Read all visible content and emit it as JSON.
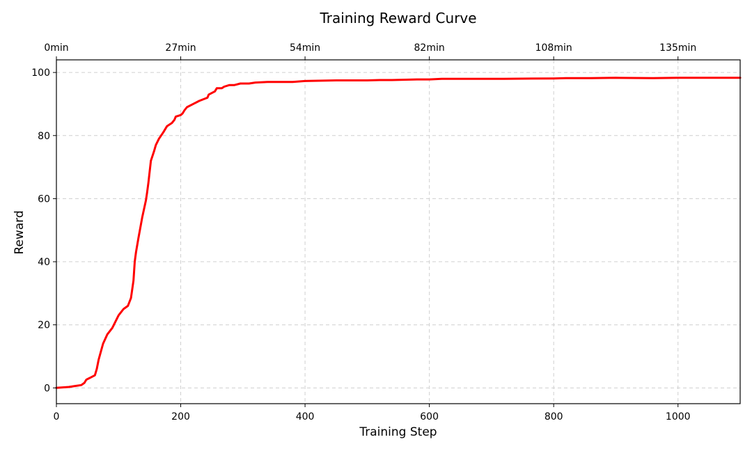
{
  "chart_data": {
    "type": "line",
    "title": "Training Reward Curve",
    "xlabel": "Training Step",
    "ylabel": "Reward",
    "xlim": [
      0,
      1100
    ],
    "ylim": [
      -5,
      104
    ],
    "xticks": [
      0,
      200,
      400,
      600,
      800,
      1000
    ],
    "yticks": [
      0,
      20,
      40,
      60,
      80,
      100
    ],
    "top_axis_ticks": [
      {
        "step": 0,
        "label": "0min"
      },
      {
        "step": 200,
        "label": "27min"
      },
      {
        "step": 400,
        "label": "54min"
      },
      {
        "step": 600,
        "label": "82min"
      },
      {
        "step": 800,
        "label": "108min"
      },
      {
        "step": 1000,
        "label": "135min"
      }
    ],
    "grid": true,
    "series": [
      {
        "color": "#ff0000",
        "x": [
          0,
          20,
          30,
          40,
          45,
          48,
          55,
          62,
          65,
          68,
          75,
          82,
          90,
          100,
          108,
          115,
          120,
          124,
          126,
          128,
          132,
          138,
          144,
          146,
          148,
          152,
          157,
          160,
          165,
          172,
          178,
          186,
          190,
          192,
          200,
          203,
          206,
          210,
          220,
          230,
          243,
          245,
          255,
          258,
          266,
          270,
          278,
          286,
          296,
          310,
          320,
          340,
          360,
          380,
          400,
          450,
          500,
          520,
          540,
          580,
          600,
          620,
          660,
          700,
          720,
          800,
          820,
          860,
          900,
          960,
          1000,
          1020,
          1060,
          1100
        ],
        "y": [
          0,
          0.3,
          0.6,
          0.9,
          1.6,
          2.6,
          3.3,
          4,
          6,
          9,
          14,
          17,
          19,
          23,
          25,
          26,
          28.5,
          34,
          40,
          43,
          47.5,
          54,
          59.5,
          62,
          65,
          72,
          75,
          77,
          79,
          81,
          83,
          84,
          85,
          86,
          86.5,
          87,
          88,
          89,
          90,
          91,
          92,
          93,
          94,
          95,
          95,
          95.5,
          96,
          96,
          96.5,
          96.5,
          96.8,
          97,
          97,
          97,
          97.3,
          97.5,
          97.5,
          97.6,
          97.6,
          97.8,
          97.8,
          98,
          98,
          98,
          98,
          98.1,
          98.2,
          98.2,
          98.3,
          98.2,
          98.3,
          98.3,
          98.3,
          98.3
        ],
        "note_y_corrected": [
          0,
          0.3,
          0.6,
          0.9,
          1.6,
          2.6,
          3.3,
          4,
          6,
          9,
          14,
          17,
          19,
          23,
          25,
          26,
          28.5,
          34,
          40,
          43,
          47.5,
          54,
          59.5,
          62,
          65,
          72,
          75,
          77,
          79,
          81,
          83,
          84,
          85,
          86,
          86.5,
          87,
          88,
          89,
          90,
          91,
          92,
          93,
          94,
          95,
          95,
          95.5,
          96,
          96,
          96.5,
          96.5,
          96.8,
          97,
          97,
          97,
          97.3,
          97.5,
          97.5,
          97.6,
          97.6,
          97.8,
          97.8,
          98,
          98,
          98,
          98,
          98.1,
          98.2,
          98.2,
          98.3,
          98.2,
          98.3,
          98.3,
          98.3,
          98.3
        ]
      }
    ]
  }
}
